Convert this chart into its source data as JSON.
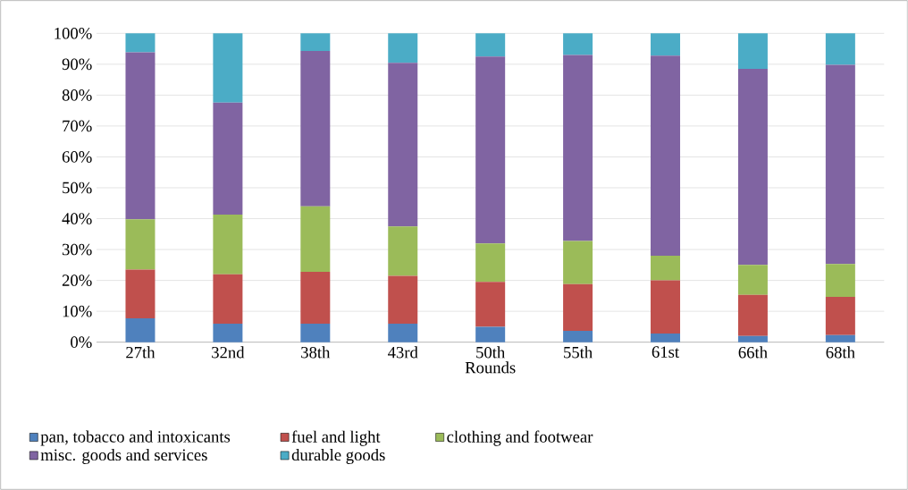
{
  "chart_data": {
    "type": "bar",
    "stacked": true,
    "xlabel": "Rounds",
    "categories": [
      "27th",
      "32nd",
      "38th",
      "43rd",
      "50th",
      "55th",
      "61st",
      "66th",
      "68th"
    ],
    "series": [
      {
        "name": "pan, tobacco and intoxicants",
        "color": "#4f81bd",
        "values": [
          7.7,
          6,
          6,
          6,
          5,
          3.7,
          2.8,
          2,
          2.3
        ]
      },
      {
        "name": "fuel and light",
        "color": "#c0504d",
        "values": [
          15.8,
          16,
          16.8,
          15.5,
          14.5,
          15.1,
          17.2,
          13.3,
          12.4
        ]
      },
      {
        "name": "clothing and footwear",
        "color": "#9bbb59",
        "values": [
          16.3,
          19.3,
          21.2,
          16,
          12.5,
          14,
          8,
          9.7,
          10.6
        ]
      },
      {
        "name": "misc. goods and services",
        "color": "#8064a2",
        "values": [
          54.1,
          36.3,
          50.3,
          53,
          60.5,
          60.2,
          64.8,
          63.5,
          64.5
        ]
      },
      {
        "name": "durable goods",
        "color": "#4bacc6",
        "values": [
          6.1,
          22.4,
          5.7,
          9.5,
          7.5,
          7,
          7.2,
          11.5,
          10.2
        ]
      }
    ],
    "ylim": [
      0,
      100
    ],
    "yticks": [
      {
        "value": 0,
        "label": "0%"
      },
      {
        "value": 10,
        "label": "10%"
      },
      {
        "value": 20,
        "label": "20%"
      },
      {
        "value": 30,
        "label": "30%"
      },
      {
        "value": 40,
        "label": "40%"
      },
      {
        "value": 50,
        "label": "50%"
      },
      {
        "value": 60,
        "label": "60%"
      },
      {
        "value": 70,
        "label": "70%"
      },
      {
        "value": 80,
        "label": "80%"
      },
      {
        "value": 90,
        "label": "90%"
      },
      {
        "value": 100,
        "label": "100%"
      }
    ],
    "grid": "y",
    "legend": "bottom"
  }
}
